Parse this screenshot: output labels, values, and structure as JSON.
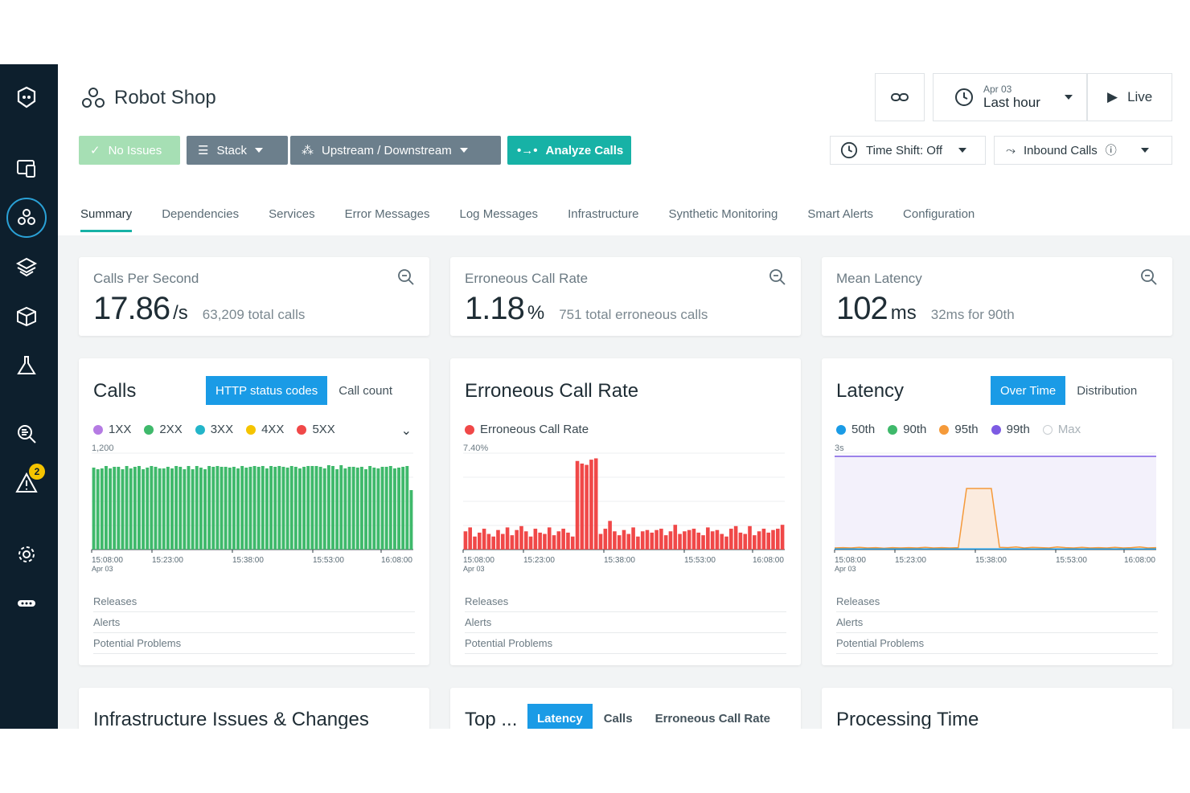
{
  "app": {
    "title": "Robot Shop"
  },
  "toolbar": {
    "no_issues": "No Issues",
    "stack": "Stack",
    "upstream": "Upstream / Downstream",
    "analyze": "Analyze Calls"
  },
  "time": {
    "date": "Apr 03",
    "range": "Last hour",
    "live": "Live",
    "time_shift": "Time Shift: Off",
    "inbound": "Inbound Calls"
  },
  "tabs": [
    "Summary",
    "Dependencies",
    "Services",
    "Error Messages",
    "Log Messages",
    "Infrastructure",
    "Synthetic Monitoring",
    "Smart Alerts",
    "Configuration"
  ],
  "kpis": [
    {
      "label": "Calls Per Second",
      "value": "17.86",
      "unit": "/s",
      "sub": "63,209 total calls"
    },
    {
      "label": "Erroneous Call Rate",
      "value": "1.18",
      "unit": "%",
      "sub": "751 total erroneous calls"
    },
    {
      "label": "Mean Latency",
      "value": "102",
      "unit": "ms",
      "sub": "32ms for 90th"
    }
  ],
  "calls_card": {
    "title": "Calls",
    "seg_on": "HTTP status codes",
    "seg_off": "Call count",
    "legend": [
      {
        "label": "1XX",
        "color": "#b57be3"
      },
      {
        "label": "2XX",
        "color": "#3fb96b"
      },
      {
        "label": "3XX",
        "color": "#23b5c9"
      },
      {
        "label": "4XX",
        "color": "#f5c400"
      },
      {
        "label": "5XX",
        "color": "#f04848"
      }
    ]
  },
  "err_card": {
    "title": "Erroneous Call Rate",
    "legend": [
      {
        "label": "Erroneous Call Rate",
        "color": "#f04848"
      }
    ]
  },
  "lat_card": {
    "title": "Latency",
    "seg_on": "Over Time",
    "seg_off": "Distribution",
    "legend": [
      {
        "label": "50th",
        "color": "#1a9be6"
      },
      {
        "label": "90th",
        "color": "#3fb96b"
      },
      {
        "label": "95th",
        "color": "#f59a3a"
      },
      {
        "label": "99th",
        "color": "#7d5be3"
      },
      {
        "label": "Max",
        "color": "#c8cdd1"
      }
    ]
  },
  "rows": [
    "Releases",
    "Alerts",
    "Potential Problems"
  ],
  "bottom": {
    "infra": "Infrastructure Issues & Changes",
    "top": "Top ...",
    "top_on": "Latency",
    "top_calls": "Calls",
    "top_err": "Erroneous Call Rate",
    "processing": "Processing Time"
  },
  "chart_data": [
    {
      "type": "bar",
      "title": "Calls",
      "ylabel_top": "1,200",
      "x_ticks": [
        "15:08:00",
        "15:23:00",
        "15:38:00",
        "15:53:00",
        "16:08:00"
      ],
      "x_sub": "Apr 03",
      "series": [
        {
          "name": "2XX",
          "values": [
            1020,
            1000,
            1010,
            1040,
            1010,
            1030,
            1030,
            1000,
            1040,
            1010,
            1030,
            1040,
            1000,
            1020,
            1040,
            1030,
            1010,
            1010,
            1030,
            1010,
            1040,
            1030,
            1000,
            1040,
            1000,
            1040,
            1020,
            1000,
            1040,
            1030,
            1040,
            1030,
            1030,
            1020,
            1030,
            1010,
            1040,
            1020,
            1030,
            1040,
            1030,
            1040,
            1010,
            1040,
            1030,
            1040,
            1030,
            1020,
            1040,
            1030,
            1010,
            1030,
            1040,
            1040,
            1040,
            1030,
            1010,
            1050,
            1040,
            1000,
            1050,
            1010,
            1030,
            1030,
            1020,
            1030,
            1000,
            1040,
            1020,
            1010,
            1030,
            1030,
            1040,
            1010,
            1020,
            1030,
            1040,
            740
          ]
        }
      ]
    },
    {
      "type": "bar",
      "title": "Erroneous Call Rate",
      "ylabel_top": "7.40%",
      "x_ticks": [
        "15:08:00",
        "15:23:00",
        "15:38:00",
        "15:53:00",
        "16:08:00"
      ],
      "x_sub": "Apr 03",
      "series": [
        {
          "name": "Erroneous Call Rate",
          "values": [
            1.4,
            1.7,
            1.0,
            1.3,
            1.6,
            1.2,
            1.0,
            1.5,
            1.2,
            1.7,
            1.1,
            1.5,
            1.8,
            1.4,
            1.0,
            1.6,
            1.3,
            1.2,
            1.7,
            1.1,
            1.4,
            1.6,
            1.3,
            1.0,
            6.8,
            6.6,
            6.5,
            6.9,
            7.0,
            1.2,
            1.6,
            2.2,
            1.4,
            1.1,
            1.5,
            1.2,
            1.7,
            1.0,
            1.4,
            1.5,
            1.3,
            1.5,
            1.6,
            1.1,
            1.4,
            1.9,
            1.2,
            1.4,
            1.5,
            1.6,
            1.3,
            1.1,
            1.7,
            1.4,
            1.5,
            1.2,
            1.0,
            1.6,
            1.8,
            1.3,
            1.2,
            1.8,
            1.1,
            1.4,
            1.6,
            1.3,
            1.5,
            1.6,
            1.9
          ]
        }
      ]
    },
    {
      "type": "line",
      "title": "Latency",
      "ylabel_top": "3s",
      "x_ticks": [
        "15:08:00",
        "15:23:00",
        "15:38:00",
        "15:53:00",
        "16:08:00"
      ],
      "x_sub": "Apr 03",
      "series": [
        {
          "name": "99th",
          "values": [
            2.9,
            2.9,
            2.9,
            2.9,
            2.9,
            2.9,
            2.9,
            2.9,
            2.9,
            2.9,
            2.9,
            2.9,
            2.9,
            2.9,
            2.9,
            2.9,
            2.9,
            2.9,
            2.9,
            2.9,
            2.9,
            2.9,
            2.9,
            2.9,
            2.9,
            2.9,
            2.9,
            2.9,
            2.9,
            2.9,
            2.9,
            2.9,
            2.9,
            2.9,
            2.9,
            2.9,
            2.9,
            2.9,
            2.9,
            2.9
          ]
        },
        {
          "name": "95th",
          "values": [
            0.05,
            0.06,
            0.05,
            0.07,
            0.05,
            0.06,
            0.04,
            0.06,
            0.05,
            0.06,
            0.05,
            0.07,
            0.05,
            0.06,
            0.05,
            0.06,
            1.9,
            1.9,
            1.9,
            1.9,
            0.07,
            0.06,
            0.08,
            0.05,
            0.07,
            0.06,
            0.05,
            0.08,
            0.06,
            0.05,
            0.07,
            0.05,
            0.06,
            0.05,
            0.07,
            0.05,
            0.06,
            0.08,
            0.05,
            0.06
          ]
        },
        {
          "name": "50th",
          "values": [
            0.02,
            0.02,
            0.02,
            0.02,
            0.02,
            0.02,
            0.02,
            0.02,
            0.02,
            0.02,
            0.02,
            0.02,
            0.02,
            0.02,
            0.02,
            0.02,
            0.02,
            0.02,
            0.02,
            0.02,
            0.02,
            0.02,
            0.02,
            0.02,
            0.02,
            0.02,
            0.02,
            0.02,
            0.02,
            0.02,
            0.02,
            0.02,
            0.02,
            0.02,
            0.02,
            0.02,
            0.02,
            0.02,
            0.02,
            0.02
          ]
        }
      ]
    }
  ]
}
